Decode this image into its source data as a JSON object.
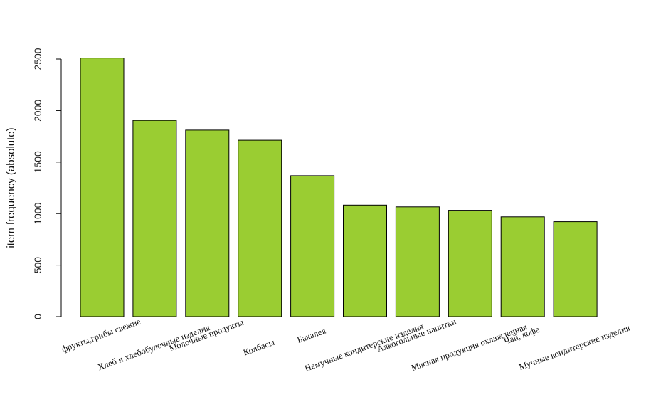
{
  "chart_data": {
    "type": "bar",
    "categories": [
      "фрукты,грибы свежие",
      "Хлеб и хлебобулочные изделия",
      "Молочные продукты",
      "Колбасы",
      "Бакалея",
      "Немучные кондитерские изделия",
      "Алкогольные напитки",
      "Мясная продукция охлажденная",
      "Чай, кофе",
      "Мучные кондитерские изделия"
    ],
    "values": [
      2510,
      1905,
      1810,
      1712,
      1368,
      1082,
      1065,
      1032,
      968,
      921
    ],
    "title": "",
    "xlabel": "",
    "ylabel": "item frequency (absolute)",
    "ylim": [
      0,
      2500
    ],
    "yticks": [
      "0",
      "500",
      "1000",
      "1500",
      "2000",
      "2500"
    ],
    "bar_color": "#9ACD32",
    "grid": false
  }
}
